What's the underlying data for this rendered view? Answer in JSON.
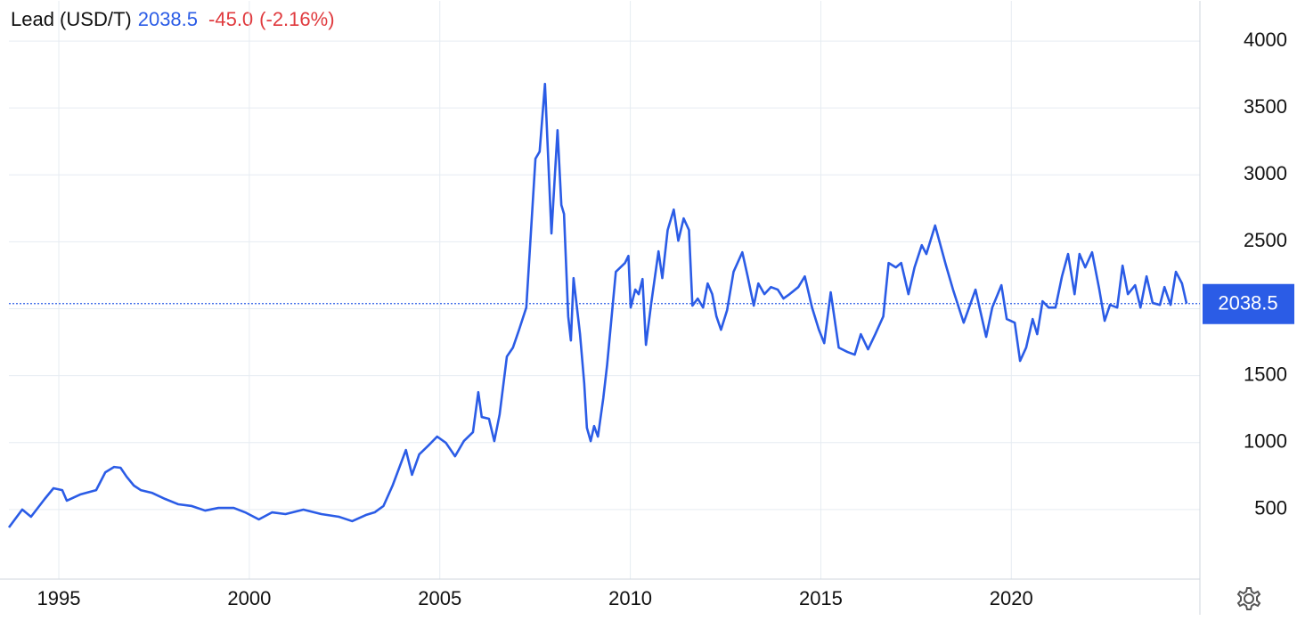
{
  "chart_data": {
    "type": "line",
    "title": "Lead (USD/T)",
    "last_value": 2038.5,
    "change": {
      "value": -45.0,
      "label": "-45.0"
    },
    "change_percent": {
      "value": -2.16,
      "label": "(-2.16%)"
    },
    "x": [
      1993.69,
      1994.04,
      1994.27,
      1994.63,
      1994.86,
      1995.09,
      1995.21,
      1995.56,
      1995.98,
      1996.22,
      1996.45,
      1996.62,
      1996.78,
      1996.97,
      1997.15,
      1997.44,
      1997.79,
      1998.14,
      1998.49,
      1998.84,
      1999.19,
      1999.59,
      1999.89,
      2000.25,
      2000.6,
      2000.95,
      2001.42,
      2001.89,
      2002.35,
      2002.7,
      2003.06,
      2003.29,
      2003.52,
      2003.76,
      2004.11,
      2004.27,
      2004.46,
      2004.7,
      2004.93,
      2005.16,
      2005.4,
      2005.63,
      2005.87,
      2006.01,
      2006.1,
      2006.29,
      2006.43,
      2006.57,
      2006.76,
      2006.92,
      2007.08,
      2007.27,
      2007.51,
      2007.62,
      2007.76,
      2007.93,
      2008.09,
      2008.19,
      2008.26,
      2008.37,
      2008.44,
      2008.51,
      2008.68,
      2008.79,
      2008.86,
      2008.96,
      2009.05,
      2009.15,
      2009.29,
      2009.39,
      2009.62,
      2009.86,
      2009.95,
      2010.01,
      2010.13,
      2010.22,
      2010.32,
      2010.41,
      2010.55,
      2010.74,
      2010.84,
      2010.98,
      2011.14,
      2011.26,
      2011.4,
      2011.54,
      2011.63,
      2011.77,
      2011.91,
      2012.03,
      2012.15,
      2012.26,
      2012.38,
      2012.54,
      2012.71,
      2012.94,
      2013.08,
      2013.24,
      2013.36,
      2013.52,
      2013.69,
      2013.87,
      2014.02,
      2014.18,
      2014.41,
      2014.58,
      2014.77,
      2014.95,
      2015.09,
      2015.26,
      2015.47,
      2015.7,
      2015.89,
      2016.05,
      2016.24,
      2016.43,
      2016.64,
      2016.78,
      2016.97,
      2017.11,
      2017.3,
      2017.46,
      2017.65,
      2017.77,
      2018.0,
      2018.28,
      2018.47,
      2018.75,
      2019.06,
      2019.34,
      2019.5,
      2019.74,
      2019.88,
      2020.09,
      2020.23,
      2020.39,
      2020.56,
      2020.68,
      2020.82,
      2020.98,
      2021.16,
      2021.33,
      2021.49,
      2021.66,
      2021.79,
      2021.94,
      2022.12,
      2022.31,
      2022.45,
      2022.59,
      2022.78,
      2022.92,
      2023.06,
      2023.25,
      2023.39,
      2023.55,
      2023.71,
      2023.9,
      2024.02,
      2024.18,
      2024.32,
      2024.48,
      2024.6
    ],
    "series": [
      {
        "name": "Lead",
        "color": "#2b5ce6",
        "values": [
          366,
          500,
          446,
          579,
          659,
          645,
          566,
          612,
          645,
          778,
          818,
          812,
          745,
          679,
          645,
          625,
          579,
          539,
          526,
          492,
          512,
          512,
          479,
          426,
          479,
          466,
          499,
          466,
          446,
          413,
          459,
          479,
          526,
          679,
          945,
          759,
          912,
          978,
          1045,
          998,
          898,
          1011,
          1078,
          1377,
          1191,
          1178,
          1011,
          1211,
          1643,
          1710,
          1843,
          2009,
          3121,
          3174,
          3680,
          2562,
          3334,
          2775,
          2708,
          1943,
          1763,
          2229,
          1810,
          1444,
          1111,
          1011,
          1124,
          1045,
          1331,
          1577,
          2276,
          2342,
          2395,
          2009,
          2143,
          2109,
          2222,
          1730,
          2043,
          2429,
          2229,
          2588,
          2741,
          2508,
          2675,
          2588,
          2023,
          2076,
          2009,
          2189,
          2109,
          1943,
          1843,
          1989,
          2276,
          2422,
          2242,
          2023,
          2189,
          2109,
          2162,
          2143,
          2076,
          2109,
          2162,
          2242,
          2009,
          1843,
          1743,
          2123,
          1710,
          1677,
          1657,
          1810,
          1697,
          1810,
          1943,
          2342,
          2309,
          2342,
          2109,
          2309,
          2475,
          2409,
          2622,
          2329,
          2143,
          1896,
          2143,
          1790,
          2009,
          2176,
          1923,
          1896,
          1610,
          1710,
          1923,
          1810,
          2056,
          2009,
          2009,
          2242,
          2409,
          2109,
          2409,
          2309,
          2422,
          2143,
          1910,
          2029,
          2009,
          2322,
          2109,
          2176,
          2009,
          2242,
          2043,
          2029,
          2162,
          2029,
          2276,
          2189,
          2038.5
        ]
      }
    ],
    "xlim": [
      1993.69,
      2024.95
    ],
    "xticks": [
      1995,
      2000,
      2005,
      2010,
      2015,
      2020
    ],
    "ylim": [
      -20,
      4300
    ],
    "yticks": [
      500,
      1000,
      1500,
      2000,
      2500,
      3000,
      3500,
      4000
    ],
    "grid": true
  }
}
